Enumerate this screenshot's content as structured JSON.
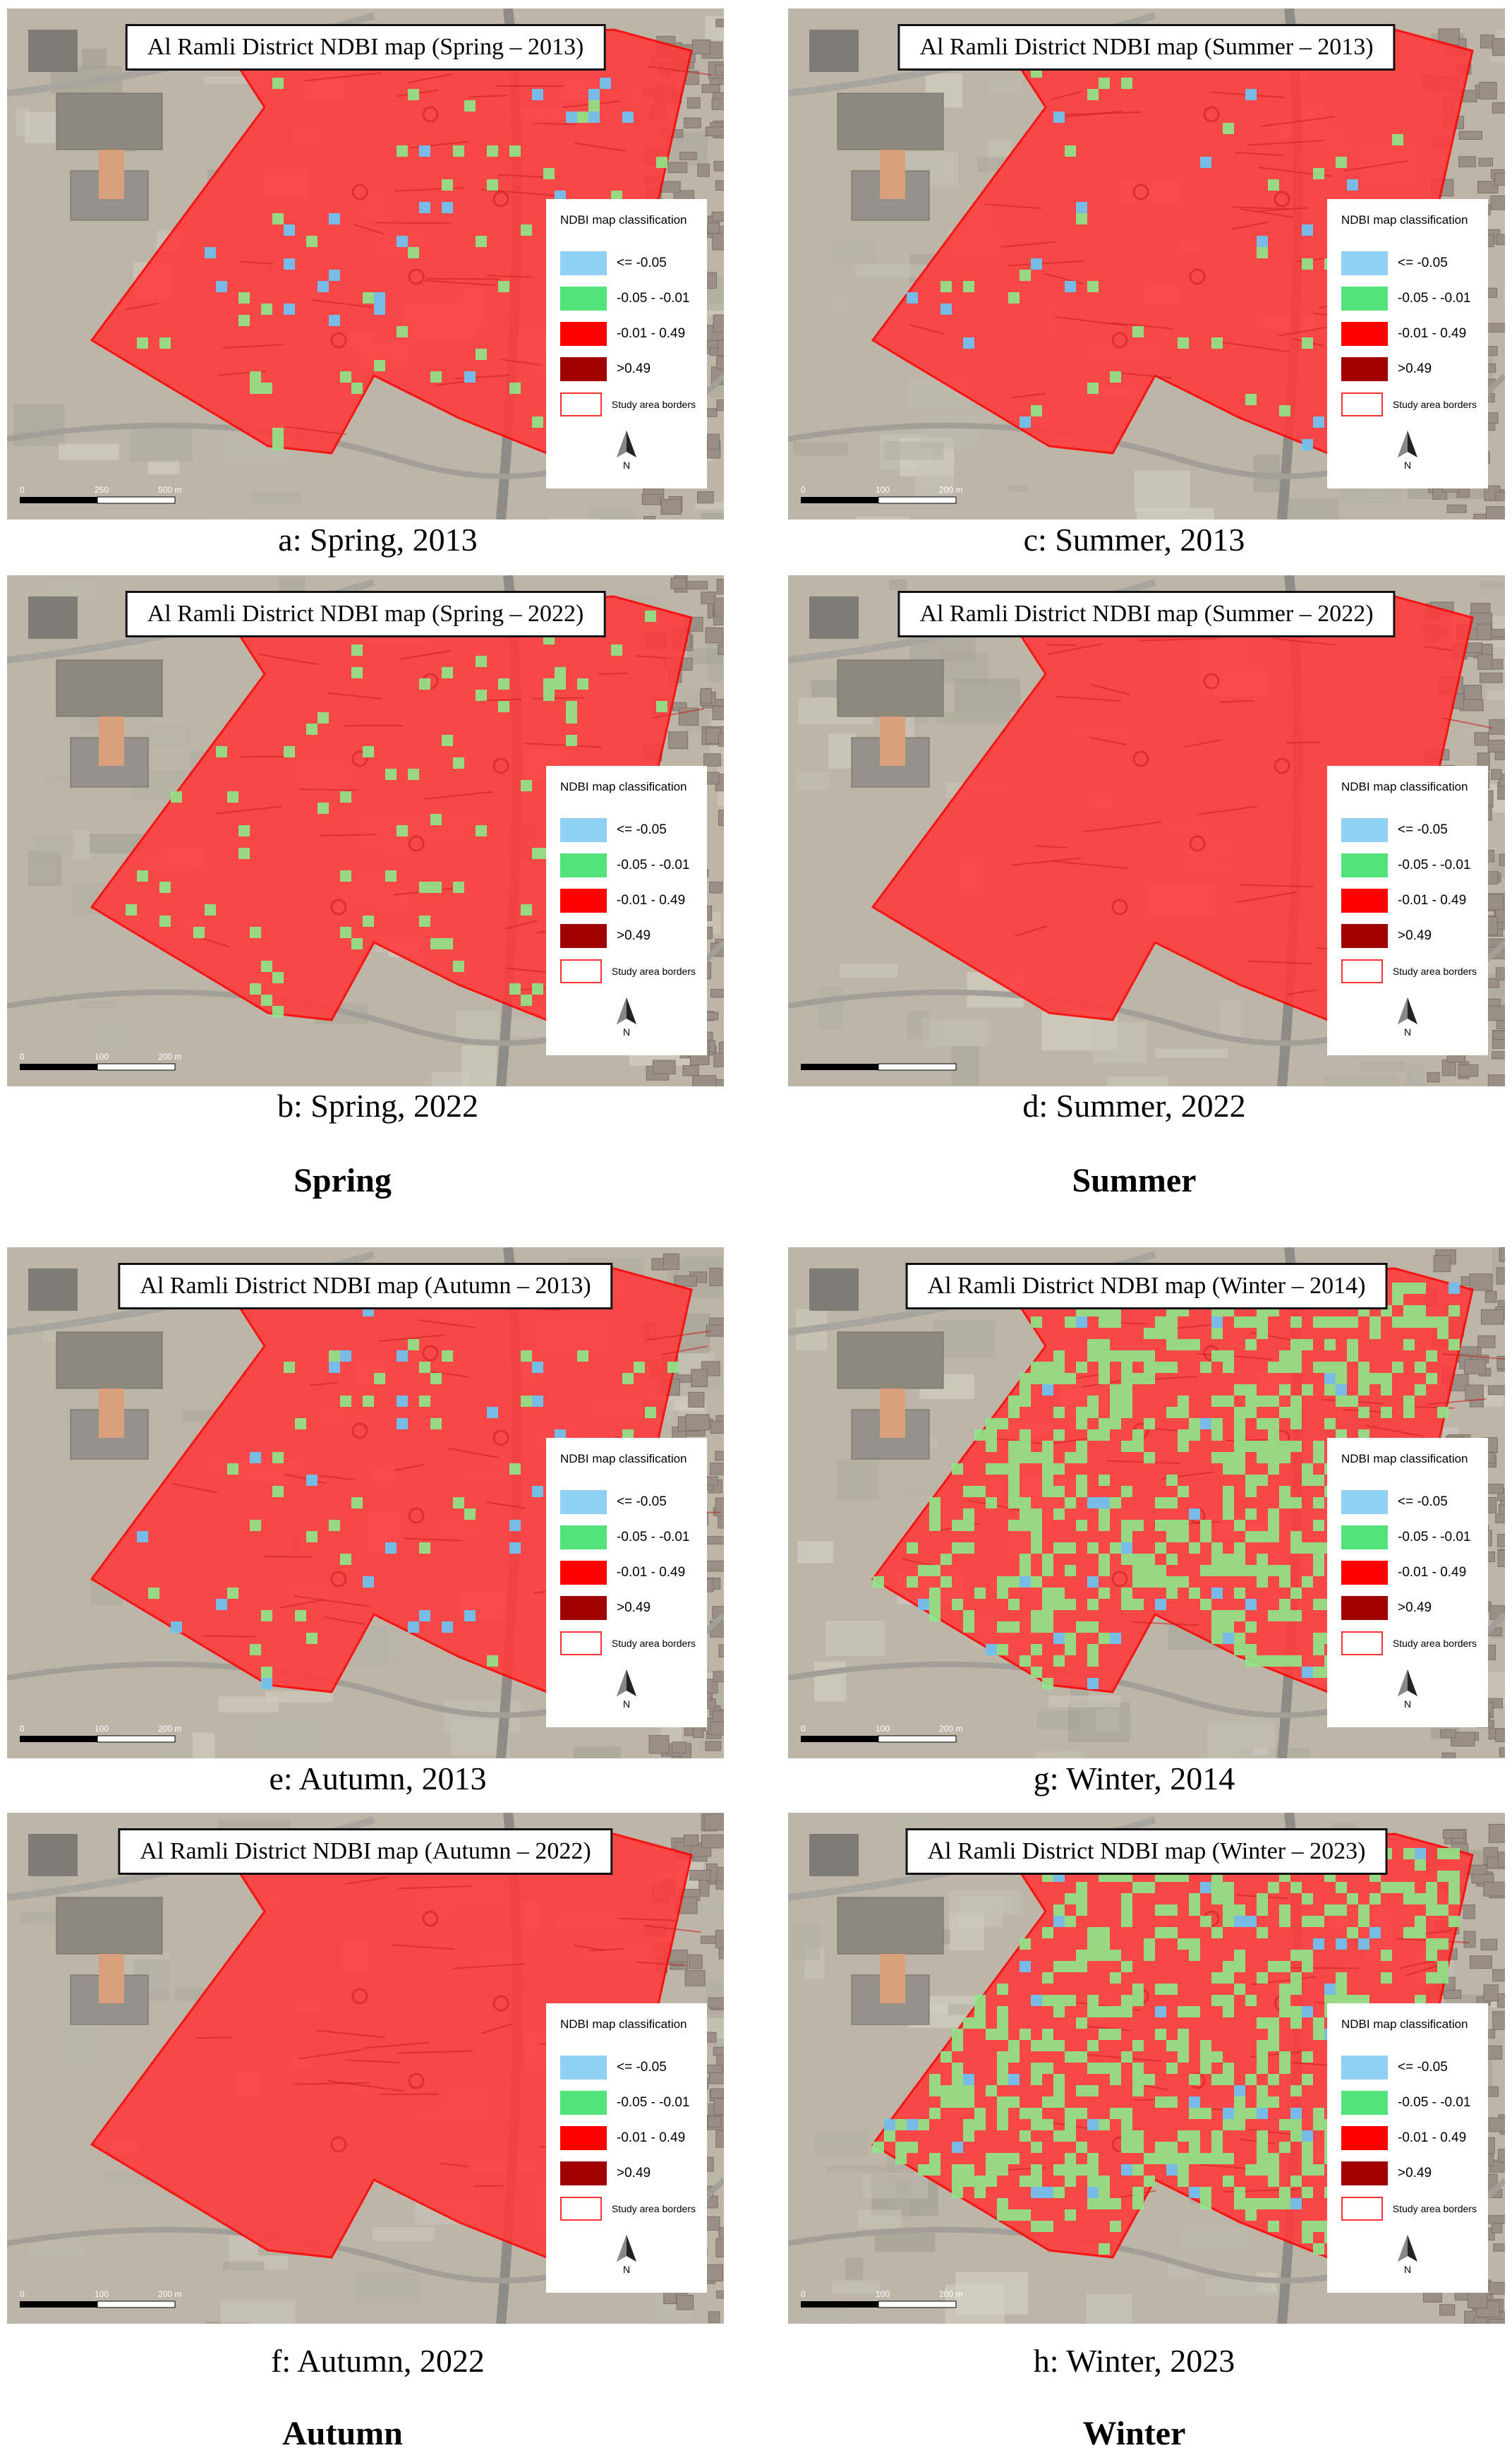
{
  "panels": [
    {
      "title": "Al Ramli District NDBI map (Spring – 2013)",
      "caption": "a: Spring, 2013",
      "scale": [
        "0",
        "250",
        "500 m"
      ],
      "green": "low",
      "blue": "low",
      "name": "spring-2013"
    },
    {
      "title": "Al Ramli District NDBI map (Summer – 2013)",
      "caption": "c: Summer, 2013",
      "scale": [
        "0",
        "100",
        "200 m"
      ],
      "green": "low",
      "blue": "low",
      "name": "summer-2013"
    },
    {
      "title": "Al Ramli District NDBI map (Spring – 2022)",
      "caption": "b: Spring, 2022",
      "scale": [
        "0",
        "100",
        "200 m"
      ],
      "green": "low",
      "blue": "none",
      "name": "spring-2022"
    },
    {
      "title": "Al Ramli District NDBI map (Summer – 2022)",
      "caption": "d: Summer, 2022",
      "scale": [
        "",
        "",
        ""
      ],
      "green": "none",
      "blue": "none",
      "name": "summer-2022"
    },
    {
      "title": "Al Ramli District NDBI map (Autumn – 2013)",
      "caption": "e: Autumn, 2013",
      "scale": [
        "0",
        "100",
        "200 m"
      ],
      "green": "low",
      "blue": "low",
      "name": "autumn-2013"
    },
    {
      "title": "Al Ramli District NDBI map (Winter – 2014)",
      "caption": "g: Winter, 2014",
      "scale": [
        "0",
        "100",
        "200 m"
      ],
      "green": "high",
      "blue": "medium",
      "name": "winter-2014"
    },
    {
      "title": "Al Ramli District NDBI map (Autumn – 2022)",
      "caption": "f: Autumn, 2022",
      "scale": [
        "0",
        "100",
        "200 m"
      ],
      "green": "none",
      "blue": "none",
      "name": "autumn-2022"
    },
    {
      "title": "Al Ramli District NDBI map (Winter – 2023)",
      "caption": "h: Winter, 2023",
      "scale": [
        "0",
        "100",
        "200 m"
      ],
      "green": "high",
      "blue": "medium",
      "name": "winter-2023"
    }
  ],
  "legend": {
    "title": "NDBI map classification",
    "classes": [
      {
        "label": "<= -0.05",
        "color": "#8fd0f4"
      },
      {
        "label": "-0.05 - -0.01",
        "color": "#52e27a"
      },
      {
        "label": "-0.01 - 0.49",
        "color": "#ff0000"
      },
      {
        "label": ">0.49",
        "color": "#a00000"
      },
      {
        "label": "Study area borders",
        "color": "#ffffff",
        "border": "#ff3333"
      }
    ],
    "north_label": "N"
  },
  "seasons": [
    "Spring",
    "Summer",
    "Autumn",
    "Winter"
  ],
  "colors": {
    "study_area": "#ff3a3a",
    "border": "#ff0000",
    "background": "#b9b2a6"
  }
}
